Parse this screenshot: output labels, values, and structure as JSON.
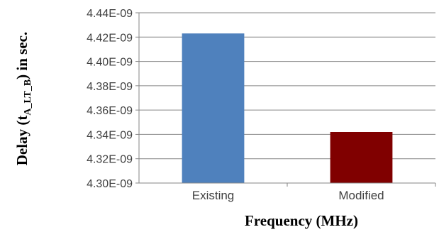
{
  "chart_data": {
    "type": "bar",
    "categories": [
      "Existing",
      "Modified"
    ],
    "values": [
      4.423e-09,
      4.342e-09
    ],
    "colors": [
      "#4f81bd",
      "#800000"
    ],
    "ylim": [
      4.3e-09,
      4.44e-09
    ],
    "yticks": [
      "4.30E-09",
      "4.32E-09",
      "4.34E-09",
      "4.36E-09",
      "4.38E-09",
      "4.40E-09",
      "4.42E-09",
      "4.44E-09"
    ],
    "grid": true,
    "legend": "none",
    "xlabel": "Frequency (MHz)",
    "ylabel": {
      "prefix": "Delay (t",
      "subscript": "A_LT_B",
      "suffix": ")  in sec."
    }
  }
}
